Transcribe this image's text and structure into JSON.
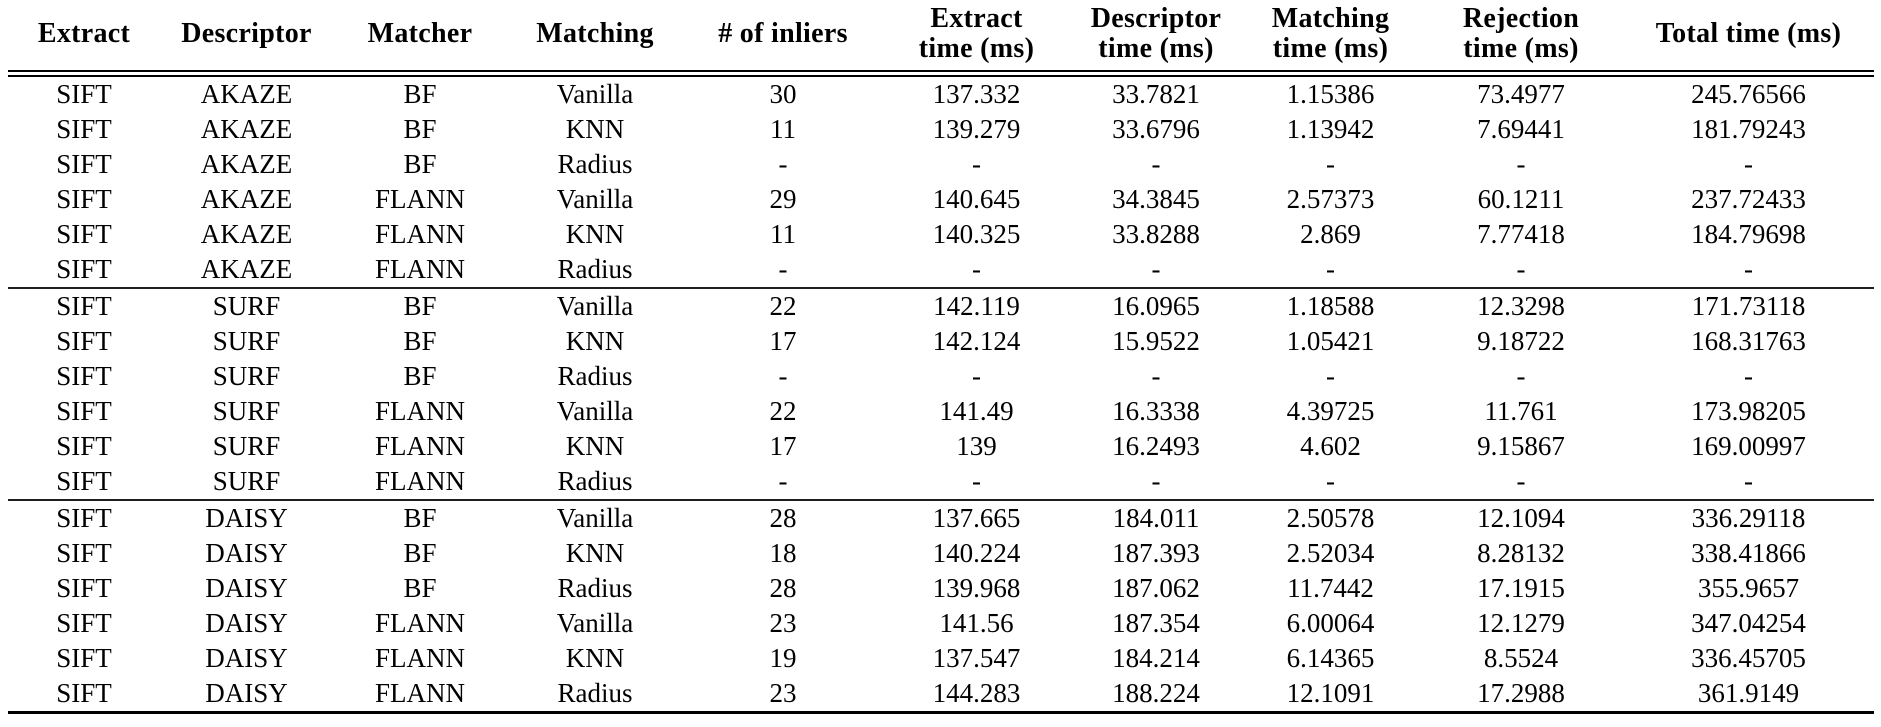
{
  "page": {
    "background_color": "#ffffff",
    "text_color": "#000000",
    "rule_color": "#000000"
  },
  "table": {
    "columns": [
      {
        "id": "extract",
        "lines": [
          "Extract"
        ]
      },
      {
        "id": "descriptor",
        "lines": [
          "Descriptor"
        ]
      },
      {
        "id": "matcher",
        "lines": [
          "Matcher"
        ]
      },
      {
        "id": "matching",
        "lines": [
          "Matching"
        ]
      },
      {
        "id": "inliers",
        "lines": [
          "# of inliers"
        ]
      },
      {
        "id": "extract-time",
        "lines": [
          "Extract",
          "time (ms)"
        ]
      },
      {
        "id": "descriptor-time",
        "lines": [
          "Descriptor",
          "time (ms)"
        ]
      },
      {
        "id": "matching-time",
        "lines": [
          "Matching",
          "time (ms)"
        ]
      },
      {
        "id": "rejection-time",
        "lines": [
          "Rejection",
          "time (ms)"
        ]
      },
      {
        "id": "total-time",
        "lines": [
          "Total time (ms)"
        ]
      }
    ],
    "groups": [
      {
        "id": "sift-akaze",
        "rows": [
          [
            "SIFT",
            "AKAZE",
            "BF",
            "Vanilla",
            "30",
            "137.332",
            "33.7821",
            "1.15386",
            "73.4977",
            "245.76566"
          ],
          [
            "SIFT",
            "AKAZE",
            "BF",
            "KNN",
            "11",
            "139.279",
            "33.6796",
            "1.13942",
            "7.69441",
            "181.79243"
          ],
          [
            "SIFT",
            "AKAZE",
            "BF",
            "Radius",
            "-",
            "-",
            "-",
            "-",
            "-",
            "-"
          ],
          [
            "SIFT",
            "AKAZE",
            "FLANN",
            "Vanilla",
            "29",
            "140.645",
            "34.3845",
            "2.57373",
            "60.1211",
            "237.72433"
          ],
          [
            "SIFT",
            "AKAZE",
            "FLANN",
            "KNN",
            "11",
            "140.325",
            "33.8288",
            "2.869",
            "7.77418",
            "184.79698"
          ],
          [
            "SIFT",
            "AKAZE",
            "FLANN",
            "Radius",
            "-",
            "-",
            "-",
            "-",
            "-",
            "-"
          ]
        ]
      },
      {
        "id": "sift-surf",
        "rows": [
          [
            "SIFT",
            "SURF",
            "BF",
            "Vanilla",
            "22",
            "142.119",
            "16.0965",
            "1.18588",
            "12.3298",
            "171.73118"
          ],
          [
            "SIFT",
            "SURF",
            "BF",
            "KNN",
            "17",
            "142.124",
            "15.9522",
            "1.05421",
            "9.18722",
            "168.31763"
          ],
          [
            "SIFT",
            "SURF",
            "BF",
            "Radius",
            "-",
            "-",
            "-",
            "-",
            "-",
            "-"
          ],
          [
            "SIFT",
            "SURF",
            "FLANN",
            "Vanilla",
            "22",
            "141.49",
            "16.3338",
            "4.39725",
            "11.761",
            "173.98205"
          ],
          [
            "SIFT",
            "SURF",
            "FLANN",
            "KNN",
            "17",
            "139",
            "16.2493",
            "4.602",
            "9.15867",
            "169.00997"
          ],
          [
            "SIFT",
            "SURF",
            "FLANN",
            "Radius",
            "-",
            "-",
            "-",
            "-",
            "-",
            "-"
          ]
        ]
      },
      {
        "id": "sift-daisy",
        "rows": [
          [
            "SIFT",
            "DAISY",
            "BF",
            "Vanilla",
            "28",
            "137.665",
            "184.011",
            "2.50578",
            "12.1094",
            "336.29118"
          ],
          [
            "SIFT",
            "DAISY",
            "BF",
            "KNN",
            "18",
            "140.224",
            "187.393",
            "2.52034",
            "8.28132",
            "338.41866"
          ],
          [
            "SIFT",
            "DAISY",
            "BF",
            "Radius",
            "28",
            "139.968",
            "187.062",
            "11.7442",
            "17.1915",
            "355.9657"
          ],
          [
            "SIFT",
            "DAISY",
            "FLANN",
            "Vanilla",
            "23",
            "141.56",
            "187.354",
            "6.00064",
            "12.1279",
            "347.04254"
          ],
          [
            "SIFT",
            "DAISY",
            "FLANN",
            "KNN",
            "19",
            "137.547",
            "184.214",
            "6.14365",
            "8.5524",
            "336.45705"
          ],
          [
            "SIFT",
            "DAISY",
            "FLANN",
            "Radius",
            "23",
            "144.283",
            "188.224",
            "12.1091",
            "17.2988",
            "361.9149"
          ]
        ]
      }
    ]
  }
}
